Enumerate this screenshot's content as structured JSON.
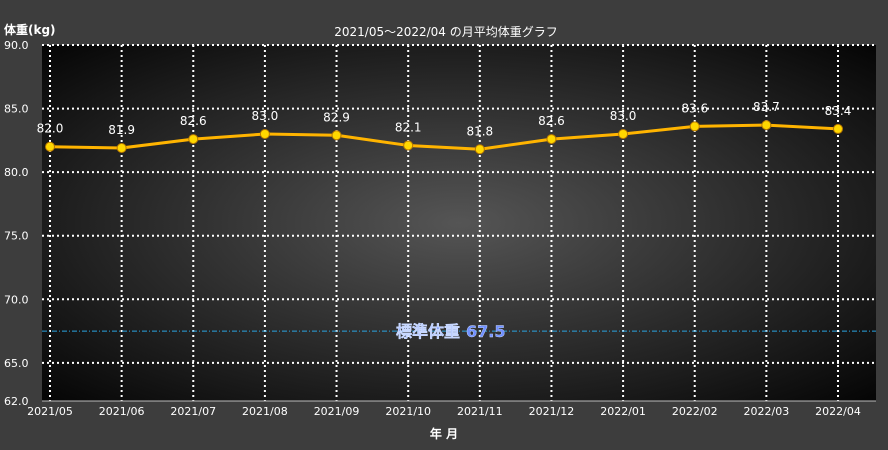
{
  "chart_data": {
    "type": "line",
    "title": "2021/05～2022/04 の月平均体重グラフ",
    "ylabel": "体重(kg)",
    "xlabel": "年 月",
    "ylim": [
      62.0,
      90.0
    ],
    "yticks": [
      62.0,
      65.0,
      70.0,
      75.0,
      80.0,
      85.0,
      90.0
    ],
    "ytick_labels": [
      "62.0",
      "65.0",
      "70.0",
      "75.0",
      "80.0",
      "85.0",
      "90.0"
    ],
    "grid": true,
    "categories": [
      "2021/05",
      "2021/06",
      "2021/07",
      "2021/08",
      "2021/09",
      "2021/10",
      "2021/11",
      "2021/12",
      "2022/01",
      "2022/02",
      "2022/03",
      "2022/04"
    ],
    "series": [
      {
        "values": [
          82.0,
          81.9,
          82.6,
          83.0,
          82.9,
          82.1,
          81.8,
          82.6,
          83.0,
          83.6,
          83.7,
          83.4
        ],
        "labels": [
          "82.0",
          "81.9",
          "82.6",
          "83.0",
          "82.9",
          "82.1",
          "81.8",
          "82.6",
          "83.0",
          "83.6",
          "83.7",
          "83.4"
        ],
        "color": "#ffb400"
      }
    ],
    "reference_line": {
      "label": "標準体重",
      "value": 67.5,
      "value_label": "67.5",
      "color": "#29a3e0",
      "label_color": "#6f8fff"
    },
    "colors": {
      "background": "#3d3d3d",
      "plot_center": "#4a4a4a",
      "plot_edge": "#000000",
      "grid": "#ffffff",
      "marker": "#ffd700"
    }
  }
}
